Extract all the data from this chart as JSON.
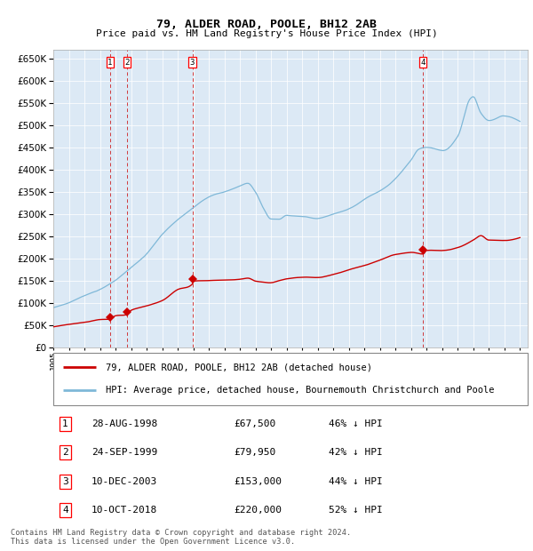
{
  "title": "79, ALDER ROAD, POOLE, BH12 2AB",
  "subtitle": "Price paid vs. HM Land Registry's House Price Index (HPI)",
  "plot_bg_color": "#dce9f5",
  "hpi_color": "#7fb8d8",
  "price_color": "#cc0000",
  "ylim": [
    0,
    670000
  ],
  "yticks": [
    0,
    50000,
    100000,
    150000,
    200000,
    250000,
    300000,
    350000,
    400000,
    450000,
    500000,
    550000,
    600000,
    650000
  ],
  "transactions": [
    {
      "id": 1,
      "date": "28-AUG-1998",
      "year": 1998.65,
      "price": 67500,
      "pct": "46%",
      "dir": "↓"
    },
    {
      "id": 2,
      "date": "24-SEP-1999",
      "year": 1999.72,
      "price": 79950,
      "pct": "42%",
      "dir": "↓"
    },
    {
      "id": 3,
      "date": "10-DEC-2003",
      "year": 2003.94,
      "price": 153000,
      "pct": "44%",
      "dir": "↓"
    },
    {
      "id": 4,
      "date": "10-OCT-2018",
      "year": 2018.78,
      "price": 220000,
      "pct": "52%",
      "dir": "↓"
    }
  ],
  "legend_label_red": "79, ALDER ROAD, POOLE, BH12 2AB (detached house)",
  "legend_label_blue": "HPI: Average price, detached house, Bournemouth Christchurch and Poole",
  "footer": "Contains HM Land Registry data © Crown copyright and database right 2024.\nThis data is licensed under the Open Government Licence v3.0.",
  "xmin": 1995.0,
  "xmax": 2025.5,
  "hpi_data": {
    "years": [
      1995,
      1996,
      1997,
      1998,
      1999,
      2000,
      2001,
      2002,
      2003,
      2004,
      2005,
      2006,
      2007,
      2007.5,
      2008,
      2008.5,
      2009,
      2009.5,
      2010,
      2011,
      2012,
      2013,
      2014,
      2015,
      2016,
      2017,
      2018,
      2018.5,
      2019,
      2020,
      2021,
      2021.8,
      2022,
      2022.5,
      2023,
      2024,
      2025
    ],
    "vals": [
      88000,
      100000,
      118000,
      135000,
      155000,
      185000,
      215000,
      255000,
      285000,
      310000,
      335000,
      355000,
      370000,
      375000,
      355000,
      320000,
      295000,
      295000,
      305000,
      305000,
      300000,
      308000,
      320000,
      340000,
      360000,
      390000,
      430000,
      455000,
      460000,
      455000,
      490000,
      575000,
      580000,
      545000,
      530000,
      545000,
      535000
    ]
  },
  "price_data": {
    "years": [
      1995,
      1996,
      1997,
      1998,
      1998.65,
      1999,
      1999.72,
      2000,
      2001,
      2002,
      2003,
      2003.94,
      2004,
      2005,
      2006,
      2007,
      2007.5,
      2008,
      2008.5,
      2009,
      2009.5,
      2010,
      2011,
      2012,
      2013,
      2014,
      2015,
      2016,
      2017,
      2018,
      2018.78,
      2019,
      2020,
      2021,
      2022,
      2022.5,
      2023,
      2024,
      2025
    ],
    "vals": [
      46000,
      52000,
      60000,
      67000,
      67500,
      76000,
      79950,
      90000,
      100000,
      112000,
      138000,
      153000,
      160000,
      162000,
      165000,
      168000,
      170000,
      162000,
      158000,
      155000,
      158000,
      162000,
      165000,
      163000,
      170000,
      180000,
      190000,
      205000,
      220000,
      225000,
      220000,
      228000,
      230000,
      238000,
      255000,
      265000,
      255000,
      255000,
      262000
    ]
  }
}
